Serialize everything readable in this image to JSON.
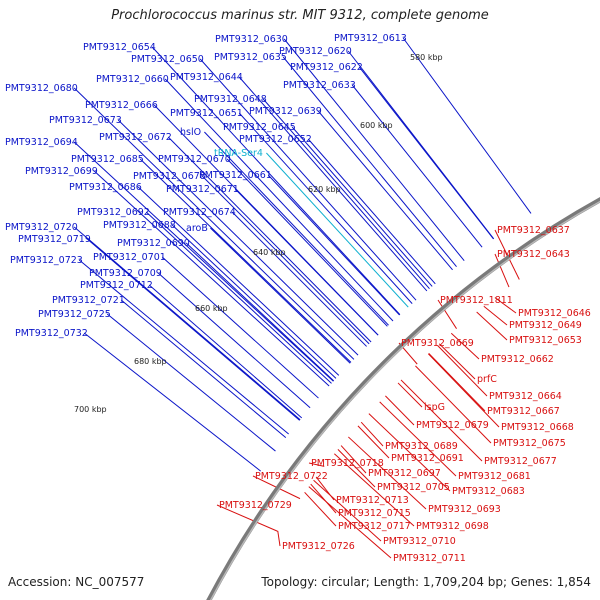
{
  "title": "Prochlorococcus marinus str. MIT 9312, complete genome",
  "footer": {
    "accession": "Accession: NC_007577",
    "summary": "Topology: circular; Length: 1,709,204 bp; Genes: 1,854"
  },
  "colors": {
    "forward_label": "#0a14c8",
    "reverse_label": "#d81010",
    "rna_label": "#10b0d0",
    "backbone": "#808080",
    "gc_tick": "#2e9a2e"
  },
  "kbp_ticks": [
    "580 kbp",
    "600 kbp",
    "620 kbp",
    "640 kbp",
    "660 kbp",
    "680 kbp",
    "700 kbp"
  ],
  "forward_labels": [
    "PMT9312_0613",
    "PMT9312_0630",
    "PMT9312_0620",
    "PMT9312_0654",
    "PMT9312_0650",
    "PMT9312_0635",
    "PMT9312_0622",
    "PMT9312_0660",
    "PMT9312_0644",
    "PMT9312_0633",
    "PMT9312_0680",
    "PMT9312_0648",
    "PMT9312_0666",
    "PMT9312_0651",
    "PMT9312_0639",
    "PMT9312_0673",
    "PMT9312_0645",
    "PMT9312_0694",
    "PMT9312_0672",
    "hslO",
    "PMT9312_0652",
    "tRNA-Ser4",
    "PMT9312_0685",
    "PMT9312_0670",
    "PMT9312_0699",
    "PMT9312_0678",
    "PMT9312_0661",
    "PMT9312_0686",
    "PMT9312_0671",
    "PMT9312_0692",
    "PMT9312_0674",
    "PMT9312_0720",
    "PMT9312_0688",
    "PMT9312_0719",
    "aroB",
    "PMT9312_0690",
    "PMT9312_0723",
    "PMT9312_0701",
    "PMT9312_0709",
    "PMT9312_0712",
    "PMT9312_0721",
    "PMT9312_0725",
    "PMT9312_0732"
  ],
  "reverse_labels": [
    "PMT9312_0637",
    "PMT9312_0643",
    "PMT9312_1811",
    "PMT9312_0646",
    "PMT9312_0649",
    "PMT9312_0653",
    "PMT9312_0669",
    "PMT9312_0662",
    "prfC",
    "PMT9312_0664",
    "PMT9312_0667",
    "ispG",
    "PMT9312_0668",
    "PMT9312_0679",
    "PMT9312_0675",
    "PMT9312_0689",
    "PMT9312_0677",
    "PMT9312_0691",
    "PMT9312_0718",
    "PMT9312_0681",
    "PMT9312_0697",
    "PMT9312_0722",
    "PMT9312_0705",
    "PMT9312_0683",
    "PMT9312_0713",
    "PMT9312_0693",
    "PMT9312_0729",
    "PMT9312_0715",
    "PMT9312_0698",
    "PMT9312_0717",
    "PMT9312_0710",
    "PMT9312_0726",
    "PMT9312_0711"
  ]
}
